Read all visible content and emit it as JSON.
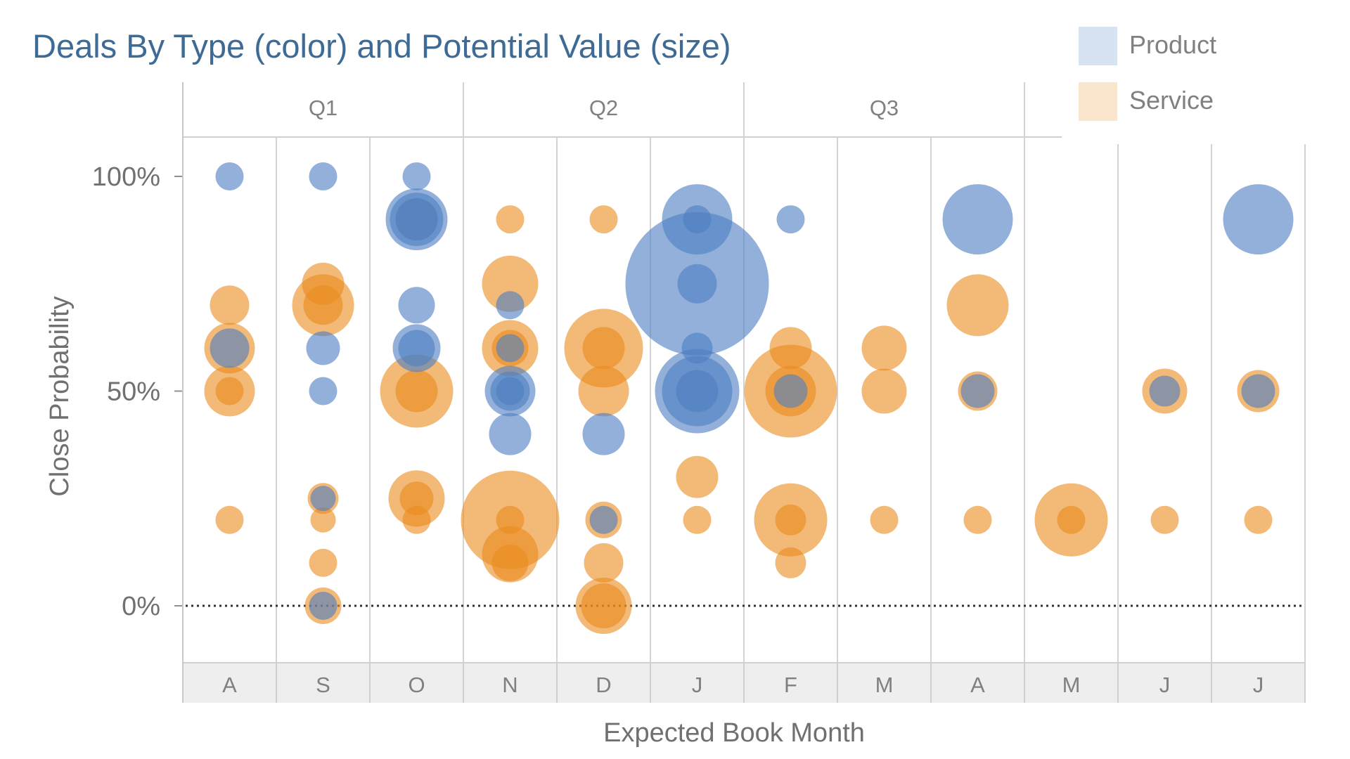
{
  "chart_data": {
    "type": "scatter",
    "title": "Deals By Type (color) and Potential Value (size)",
    "xlabel": "Expected Book Month",
    "ylabel": "Close Probability",
    "y_ticks": [
      "100%",
      "50%",
      "0%"
    ],
    "ylim": [
      -0.13,
      1.1
    ],
    "quarters": [
      {
        "label": "Q1",
        "months": [
          0,
          2
        ]
      },
      {
        "label": "Q2",
        "months": [
          3,
          5
        ]
      },
      {
        "label": "Q3",
        "months": [
          6,
          8
        ]
      },
      {
        "label": "",
        "months": [
          9,
          11
        ]
      }
    ],
    "months": [
      "A",
      "S",
      "O",
      "N",
      "D",
      "J",
      "F",
      "M",
      "A",
      "M",
      "J",
      "J"
    ],
    "legend": {
      "position": "top-right",
      "items": [
        {
          "name": "Product",
          "color": "#4f7fc2"
        },
        {
          "name": "Service",
          "color": "#ea8a1c"
        }
      ]
    },
    "colors": {
      "product": "#4f7fc2",
      "service": "#ea8a1c",
      "title": "#3d6b96",
      "grid": "#d4d4d4",
      "month_band": "#eeeeee"
    },
    "series": [
      {
        "name": "Service",
        "points": [
          {
            "m": 0,
            "p": 0.7,
            "v": 28
          },
          {
            "m": 0,
            "p": 0.6,
            "v": 36
          },
          {
            "m": 0,
            "p": 0.5,
            "v": 36
          },
          {
            "m": 0,
            "p": 0.5,
            "v": 20
          },
          {
            "m": 0,
            "p": 0.2,
            "v": 20
          },
          {
            "m": 1,
            "p": 0.75,
            "v": 30
          },
          {
            "m": 1,
            "p": 0.7,
            "v": 44
          },
          {
            "m": 1,
            "p": 0.7,
            "v": 28
          },
          {
            "m": 1,
            "p": 0.25,
            "v": 22
          },
          {
            "m": 1,
            "p": 0.2,
            "v": 18
          },
          {
            "m": 1,
            "p": 0.1,
            "v": 20
          },
          {
            "m": 1,
            "p": 0.0,
            "v": 26
          },
          {
            "m": 2,
            "p": 0.9,
            "v": 30
          },
          {
            "m": 2,
            "p": 0.5,
            "v": 52
          },
          {
            "m": 2,
            "p": 0.5,
            "v": 30
          },
          {
            "m": 2,
            "p": 0.25,
            "v": 40
          },
          {
            "m": 2,
            "p": 0.25,
            "v": 24
          },
          {
            "m": 2,
            "p": 0.2,
            "v": 20
          },
          {
            "m": 3,
            "p": 0.9,
            "v": 20
          },
          {
            "m": 3,
            "p": 0.75,
            "v": 40
          },
          {
            "m": 3,
            "p": 0.6,
            "v": 40
          },
          {
            "m": 3,
            "p": 0.6,
            "v": 26
          },
          {
            "m": 3,
            "p": 0.2,
            "v": 70
          },
          {
            "m": 3,
            "p": 0.2,
            "v": 20
          },
          {
            "m": 3,
            "p": 0.12,
            "v": 40
          },
          {
            "m": 3,
            "p": 0.1,
            "v": 26
          },
          {
            "m": 4,
            "p": 0.9,
            "v": 20
          },
          {
            "m": 4,
            "p": 0.6,
            "v": 56
          },
          {
            "m": 4,
            "p": 0.6,
            "v": 30
          },
          {
            "m": 4,
            "p": 0.5,
            "v": 36
          },
          {
            "m": 4,
            "p": 0.2,
            "v": 26
          },
          {
            "m": 4,
            "p": 0.1,
            "v": 28
          },
          {
            "m": 4,
            "p": 0.0,
            "v": 40
          },
          {
            "m": 4,
            "p": 0.0,
            "v": 32
          },
          {
            "m": 5,
            "p": 0.3,
            "v": 30
          },
          {
            "m": 5,
            "p": 0.2,
            "v": 20
          },
          {
            "m": 6,
            "p": 0.6,
            "v": 30
          },
          {
            "m": 6,
            "p": 0.5,
            "v": 66
          },
          {
            "m": 6,
            "p": 0.5,
            "v": 36
          },
          {
            "m": 6,
            "p": 0.2,
            "v": 52
          },
          {
            "m": 6,
            "p": 0.2,
            "v": 22
          },
          {
            "m": 6,
            "p": 0.1,
            "v": 22
          },
          {
            "m": 7,
            "p": 0.6,
            "v": 32
          },
          {
            "m": 7,
            "p": 0.5,
            "v": 32
          },
          {
            "m": 7,
            "p": 0.2,
            "v": 20
          },
          {
            "m": 8,
            "p": 0.7,
            "v": 44
          },
          {
            "m": 8,
            "p": 0.5,
            "v": 28
          },
          {
            "m": 8,
            "p": 0.2,
            "v": 20
          },
          {
            "m": 9,
            "p": 0.2,
            "v": 52
          },
          {
            "m": 9,
            "p": 0.2,
            "v": 20
          },
          {
            "m": 10,
            "p": 0.5,
            "v": 32
          },
          {
            "m": 10,
            "p": 0.2,
            "v": 20
          },
          {
            "m": 11,
            "p": 0.5,
            "v": 30
          },
          {
            "m": 11,
            "p": 0.2,
            "v": 20
          }
        ]
      },
      {
        "name": "Product",
        "points": [
          {
            "m": 0,
            "p": 1.0,
            "v": 20
          },
          {
            "m": 0,
            "p": 0.6,
            "v": 28
          },
          {
            "m": 1,
            "p": 1.0,
            "v": 20
          },
          {
            "m": 1,
            "p": 0.6,
            "v": 24
          },
          {
            "m": 1,
            "p": 0.5,
            "v": 20
          },
          {
            "m": 1,
            "p": 0.25,
            "v": 18
          },
          {
            "m": 1,
            "p": 0.0,
            "v": 20
          },
          {
            "m": 2,
            "p": 1.0,
            "v": 20
          },
          {
            "m": 2,
            "p": 0.9,
            "v": 44
          },
          {
            "m": 2,
            "p": 0.9,
            "v": 38
          },
          {
            "m": 2,
            "p": 0.9,
            "v": 30
          },
          {
            "m": 2,
            "p": 0.7,
            "v": 26
          },
          {
            "m": 2,
            "p": 0.6,
            "v": 34
          },
          {
            "m": 2,
            "p": 0.6,
            "v": 26
          },
          {
            "m": 3,
            "p": 0.7,
            "v": 20
          },
          {
            "m": 3,
            "p": 0.6,
            "v": 20
          },
          {
            "m": 3,
            "p": 0.5,
            "v": 36
          },
          {
            "m": 3,
            "p": 0.5,
            "v": 28
          },
          {
            "m": 3,
            "p": 0.5,
            "v": 20
          },
          {
            "m": 3,
            "p": 0.4,
            "v": 30
          },
          {
            "m": 4,
            "p": 0.4,
            "v": 30
          },
          {
            "m": 4,
            "p": 0.2,
            "v": 20
          },
          {
            "m": 5,
            "p": 0.9,
            "v": 50
          },
          {
            "m": 5,
            "p": 0.9,
            "v": 20
          },
          {
            "m": 5,
            "p": 0.75,
            "v": 102
          },
          {
            "m": 5,
            "p": 0.75,
            "v": 28
          },
          {
            "m": 5,
            "p": 0.6,
            "v": 22
          },
          {
            "m": 5,
            "p": 0.5,
            "v": 60
          },
          {
            "m": 5,
            "p": 0.5,
            "v": 50
          },
          {
            "m": 5,
            "p": 0.5,
            "v": 30
          },
          {
            "m": 6,
            "p": 0.9,
            "v": 20
          },
          {
            "m": 6,
            "p": 0.5,
            "v": 24
          },
          {
            "m": 8,
            "p": 0.9,
            "v": 50
          },
          {
            "m": 8,
            "p": 0.5,
            "v": 24
          },
          {
            "m": 10,
            "p": 0.5,
            "v": 22
          },
          {
            "m": 11,
            "p": 0.9,
            "v": 50
          },
          {
            "m": 11,
            "p": 0.5,
            "v": 24
          }
        ]
      }
    ]
  }
}
